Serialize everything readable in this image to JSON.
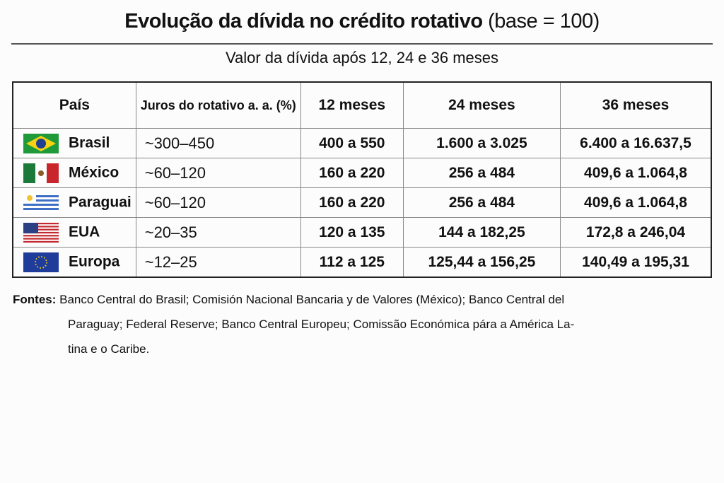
{
  "title": {
    "main": "Evolução da dívida no crédito rotativo",
    "suffix": "(base = 100)"
  },
  "subtitle": "Valor da dívida após 12, 24 e 36 meses",
  "chart_data": {
    "type": "table",
    "title": "Evolução da dívida no crédito rotativo (base = 100)",
    "subtitle": "Valor da dívida após 12, 24 e 36 meses",
    "columns": [
      "País",
      "Juros do rotativo a. a. (%)",
      "12 meses",
      "24 meses",
      "36 meses"
    ],
    "rows": [
      {
        "country": "Brasil",
        "flag": "brazil-flag",
        "rate": "~300–450",
        "m12": "400 a 550",
        "m24": "1.600 a 3.025",
        "m36": "6.400 a 16.637,5"
      },
      {
        "country": "México",
        "flag": "mexico-flag",
        "rate": "~60–120",
        "m12": "160 a 220",
        "m24": "256 a 484",
        "m36": "409,6 a 1.064,8"
      },
      {
        "country": "Paraguai",
        "flag": "uruguay-style-flag",
        "rate": "~60–120",
        "m12": "160 a 220",
        "m24": "256 a 484",
        "m36": "409,6 a 1.064,8"
      },
      {
        "country": "EUA",
        "flag": "usa-flag",
        "rate": "~20–35",
        "m12": "120 a 135",
        "m24": "144 a 182,25",
        "m36": "172,8 a 246,04"
      },
      {
        "country": "Europa",
        "flag": "eu-flag",
        "rate": "~12–25",
        "m12": "112 a 125",
        "m24": "125,44 a 156,25",
        "m36": "140,49 a 195,31"
      }
    ]
  },
  "sources": {
    "label": "Fontes:",
    "line1": "Banco Central do Brasil; Comisión Nacional Bancaria y de Valores (México); Banco Central del",
    "line2": "Paraguay; Federal Reserve; Banco Central Europeu; Comissão Económica pára a América La-",
    "line3": "tina e o Caribe."
  }
}
